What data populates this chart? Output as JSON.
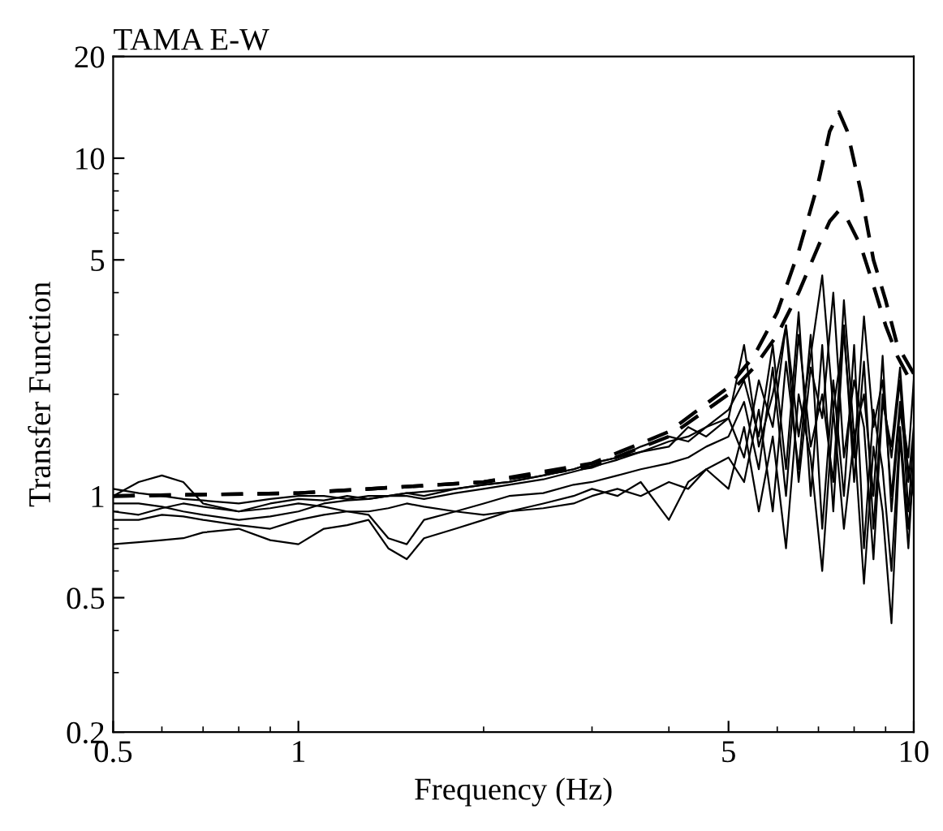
{
  "chart_data": {
    "type": "line",
    "title": "TAMA E-W",
    "xlabel": "Frequency (Hz)",
    "ylabel": "Transfer Function",
    "log": "xy",
    "xlim": [
      0.5,
      10
    ],
    "ylim": [
      0.2,
      20
    ],
    "xticks": [
      0.5,
      1,
      5,
      10
    ],
    "yticks": [
      0.2,
      0.5,
      1,
      5,
      10,
      20
    ],
    "grid": false,
    "legend": false,
    "marker": "none",
    "x": [
      0.5,
      0.55,
      0.6,
      0.65,
      0.7,
      0.8,
      0.9,
      1.0,
      1.1,
      1.2,
      1.3,
      1.4,
      1.5,
      1.6,
      1.8,
      2.0,
      2.2,
      2.5,
      2.8,
      3.0,
      3.3,
      3.6,
      4.0,
      4.3,
      4.6,
      5.0,
      5.3,
      5.6,
      5.9,
      6.2,
      6.5,
      6.8,
      7.1,
      7.4,
      7.7,
      8.0,
      8.3,
      8.6,
      8.9,
      9.2,
      9.5,
      9.8,
      10
    ],
    "series": [
      {
        "color": "#000000",
        "line_style": "solid",
        "values": [
          1.0,
          1.1,
          1.15,
          1.1,
          0.95,
          0.9,
          0.95,
          0.98,
          0.97,
          1.0,
          0.98,
          1.0,
          1.02,
          1.0,
          1.05,
          1.08,
          1.1,
          1.15,
          1.2,
          1.25,
          1.3,
          1.35,
          1.45,
          1.5,
          1.6,
          1.8,
          2.2,
          1.5,
          2.8,
          1.2,
          3.5,
          1.0,
          2.8,
          0.9,
          3.2,
          1.1,
          2.5,
          0.8,
          2.0,
          1.3,
          2.2,
          0.9,
          1.5
        ]
      },
      {
        "color": "#000000",
        "line_style": "solid",
        "values": [
          0.72,
          0.73,
          0.74,
          0.75,
          0.78,
          0.8,
          0.74,
          0.72,
          0.8,
          0.82,
          0.85,
          0.7,
          0.65,
          0.75,
          0.8,
          0.85,
          0.9,
          0.92,
          0.95,
          1.0,
          1.05,
          1.0,
          1.1,
          1.05,
          1.2,
          1.3,
          1.1,
          1.8,
          0.9,
          2.5,
          1.2,
          3.0,
          0.8,
          2.2,
          1.0,
          2.8,
          0.7,
          1.8,
          1.2,
          0.6,
          1.6,
          0.8,
          1.2
        ]
      },
      {
        "color": "#000000",
        "line_style": "solid",
        "values": [
          0.9,
          0.88,
          0.92,
          0.95,
          0.93,
          0.9,
          0.92,
          0.95,
          0.93,
          0.9,
          0.88,
          0.75,
          0.72,
          0.85,
          0.9,
          0.95,
          1.0,
          1.02,
          1.08,
          1.1,
          1.15,
          1.2,
          1.25,
          1.3,
          1.4,
          1.5,
          1.9,
          1.2,
          2.4,
          1.0,
          3.0,
          1.4,
          2.0,
          1.1,
          3.8,
          1.5,
          2.0,
          1.0,
          2.6,
          0.9,
          1.8,
          1.2,
          1.0
        ]
      },
      {
        "color": "#000000",
        "line_style": "solid",
        "values": [
          0.95,
          0.95,
          0.93,
          0.9,
          0.88,
          0.85,
          0.87,
          0.9,
          0.95,
          0.97,
          0.98,
          1.0,
          1.0,
          0.98,
          1.02,
          1.05,
          1.08,
          1.12,
          1.18,
          1.22,
          1.28,
          1.35,
          1.4,
          1.6,
          1.5,
          1.7,
          1.3,
          2.2,
          1.6,
          3.2,
          1.1,
          2.4,
          1.7,
          4.0,
          1.3,
          2.2,
          1.6,
          0.65,
          1.9,
          1.4,
          2.4,
          1.1,
          1.6
        ]
      },
      {
        "color": "#000000",
        "line_style": "solid",
        "values": [
          0.85,
          0.85,
          0.88,
          0.87,
          0.85,
          0.82,
          0.8,
          0.85,
          0.88,
          0.9,
          0.9,
          0.92,
          0.95,
          0.93,
          0.9,
          0.88,
          0.9,
          0.95,
          1.0,
          1.05,
          1.0,
          1.1,
          0.85,
          1.1,
          1.2,
          1.05,
          1.6,
          0.9,
          1.5,
          0.7,
          2.0,
          1.3,
          0.6,
          1.8,
          0.8,
          1.5,
          0.55,
          1.4,
          0.9,
          0.42,
          1.5,
          0.7,
          1.3
        ]
      },
      {
        "color": "#000000",
        "line_style": "solid",
        "values": [
          1.05,
          1.02,
          1.0,
          0.98,
          0.97,
          0.95,
          0.98,
          1.0,
          1.0,
          0.98,
          1.0,
          1.0,
          1.02,
          1.03,
          1.05,
          1.08,
          1.1,
          1.15,
          1.2,
          1.25,
          1.3,
          1.4,
          1.5,
          1.45,
          1.6,
          1.7,
          2.8,
          1.4,
          2.0,
          3.2,
          1.5,
          2.6,
          4.5,
          1.8,
          3.0,
          1.3,
          3.4,
          1.6,
          2.2,
          1.0,
          1.9,
          1.3,
          2.2
        ]
      },
      {
        "color": "#000000",
        "line_style": "dashed",
        "x": [
          0.5,
          1,
          2,
          3,
          4,
          5,
          5.5,
          6,
          6.5,
          7,
          7.3,
          7.56,
          7.8,
          8.2,
          8.6,
          9,
          9.4,
          10
        ],
        "values": [
          1.0,
          1.02,
          1.1,
          1.25,
          1.55,
          2.1,
          2.6,
          3.5,
          5.3,
          8.5,
          12,
          13.7,
          12,
          8,
          5,
          3.8,
          2.8,
          2.3
        ]
      },
      {
        "color": "#000000",
        "line_style": "dashed",
        "x": [
          0.5,
          1,
          2,
          3,
          4,
          5,
          5.5,
          6,
          6.5,
          7,
          7.3,
          7.56,
          7.8,
          8.2,
          8.6,
          9,
          9.4,
          10
        ],
        "values": [
          1.0,
          1.02,
          1.1,
          1.22,
          1.5,
          2.0,
          2.4,
          3.0,
          4.0,
          5.5,
          6.5,
          7.0,
          6.6,
          5.5,
          4.2,
          3.2,
          2.6,
          2.1
        ]
      }
    ]
  }
}
